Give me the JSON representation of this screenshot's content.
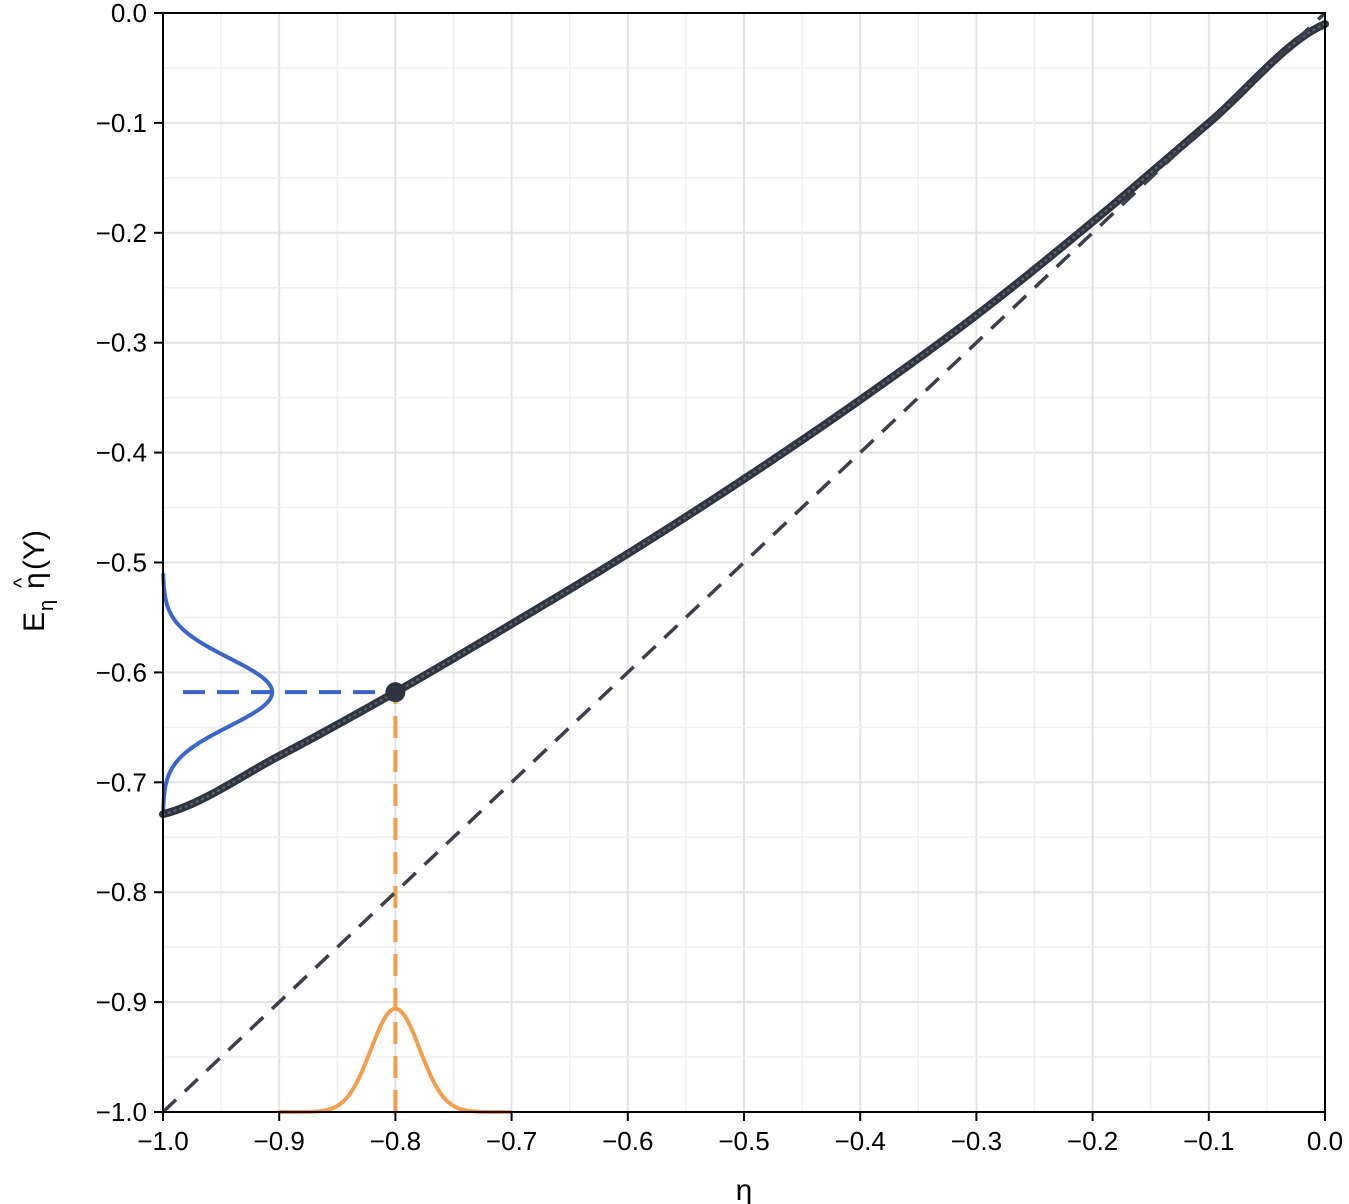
{
  "chart_data": {
    "type": "line",
    "xlabel": "η",
    "ylabel": {
      "main": "E",
      "subscript": "η",
      "hat": "^",
      "symbol": "η",
      "argument": "(Y)"
    },
    "xlim": [
      -1.0,
      0.0
    ],
    "ylim": [
      -1.0,
      0.0
    ],
    "x_ticks": [
      -1.0,
      -0.9,
      -0.8,
      -0.7,
      -0.6,
      -0.5,
      -0.4,
      -0.3,
      -0.2,
      -0.1,
      0.0
    ],
    "y_ticks": [
      0.0,
      -0.1,
      -0.2,
      -0.3,
      -0.4,
      -0.5,
      -0.6,
      -0.7,
      -0.8,
      -0.9,
      -1.0
    ],
    "x_tick_labels": [
      "−1.0",
      "−0.9",
      "−0.8",
      "−0.7",
      "−0.6",
      "−0.5",
      "−0.4",
      "−0.3",
      "−0.2",
      "−0.1",
      "0.0"
    ],
    "y_tick_labels": [
      "0.0",
      "−0.1",
      "−0.2",
      "−0.3",
      "−0.4",
      "−0.5",
      "−0.6",
      "−0.7",
      "−0.8",
      "−0.9",
      "−1.0"
    ],
    "grid": true,
    "minor_grid": true,
    "series": [
      {
        "kind": "curve",
        "style": "thick dotted",
        "color": "#2e3440",
        "x": [
          -1.0,
          -0.9,
          -0.8,
          -0.7,
          -0.6,
          -0.5,
          -0.4,
          -0.3,
          -0.2,
          -0.1,
          0.0
        ],
        "y": [
          -0.729,
          -0.676,
          -0.618,
          -0.556,
          -0.492,
          -0.424,
          -0.352,
          -0.275,
          -0.19,
          -0.1,
          -0.01
        ]
      },
      {
        "kind": "identity-line",
        "style": "dashed",
        "color": "#3a3f4b",
        "x": [
          -1.0,
          0.0
        ],
        "y": [
          -1.0,
          0.0
        ]
      },
      {
        "kind": "highlight-point",
        "color": "#2e3440",
        "x": -0.8,
        "y": -0.618
      },
      {
        "kind": "vertical-guide",
        "style": "dashed",
        "color": "#f29e4c",
        "x": -0.8,
        "y": [
          -1.0,
          -0.618
        ]
      },
      {
        "kind": "horizontal-guide",
        "style": "dashed",
        "color": "#3a66cc",
        "x": [
          -1.0,
          -0.8
        ],
        "y": -0.618
      },
      {
        "kind": "density-horizontal",
        "color": "#f29e4c",
        "center": -0.8,
        "sd": 0.021,
        "peak_height": 0.094,
        "range": [
          -0.9,
          -0.7
        ]
      },
      {
        "kind": "density-vertical",
        "color": "#3a66cc",
        "center": -0.618,
        "sd": 0.031,
        "peak_height": 0.094,
        "range": [
          -0.725,
          -0.51
        ]
      }
    ]
  }
}
